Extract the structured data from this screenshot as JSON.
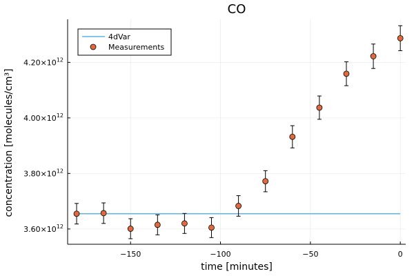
{
  "chart_data": {
    "type": "scatter",
    "title": "CO",
    "xlabel": "time [minutes]",
    "ylabel": "concentration [molecules/cm³]",
    "xlim": [
      -185,
      3
    ],
    "ylim": [
      3545000000000.0,
      4355000000000.0
    ],
    "x_ticks": [
      {
        "value": -150,
        "label": "−150"
      },
      {
        "value": -100,
        "label": "−100"
      },
      {
        "value": -50,
        "label": "−50"
      },
      {
        "value": 0,
        "label": "0"
      }
    ],
    "y_ticks": [
      {
        "value": 3600000000000.0,
        "mantissa": "3.60",
        "base": "×10",
        "exp": "12"
      },
      {
        "value": 3800000000000.0,
        "mantissa": "3.80",
        "base": "×10",
        "exp": "12"
      },
      {
        "value": 4000000000000.0,
        "mantissa": "4.00",
        "base": "×10",
        "exp": "12"
      },
      {
        "value": 4200000000000.0,
        "mantissa": "4.20",
        "base": "×10",
        "exp": "12"
      }
    ],
    "grid": true,
    "legend_position": "top-left",
    "series": [
      {
        "name": "4dVar",
        "kind": "line",
        "color": "#5fb2ea",
        "x": [
          -180,
          0
        ],
        "y": [
          3655000000000.0,
          3655000000000.0
        ]
      },
      {
        "name": "Measurements",
        "kind": "scatter",
        "color": "#e06a3f",
        "x": [
          -180,
          -165,
          -150,
          -135,
          -120,
          -105,
          -90,
          -75,
          -60,
          -45,
          -30,
          -15,
          0
        ],
        "y": [
          3655000000000.0,
          3657000000000.0,
          3601000000000.0,
          3615000000000.0,
          3620000000000.0,
          3605000000000.0,
          3683000000000.0,
          3772000000000.0,
          3932000000000.0,
          4037000000000.0,
          4159000000000.0,
          4222000000000.0,
          4287000000000.0
        ],
        "error": [
          37000000000.0,
          37000000000.0,
          36000000000.0,
          36000000000.0,
          36000000000.0,
          36000000000.0,
          37000000000.0,
          38000000000.0,
          40000000000.0,
          42000000000.0,
          43000000000.0,
          44000000000.0,
          45000000000.0
        ]
      }
    ]
  }
}
